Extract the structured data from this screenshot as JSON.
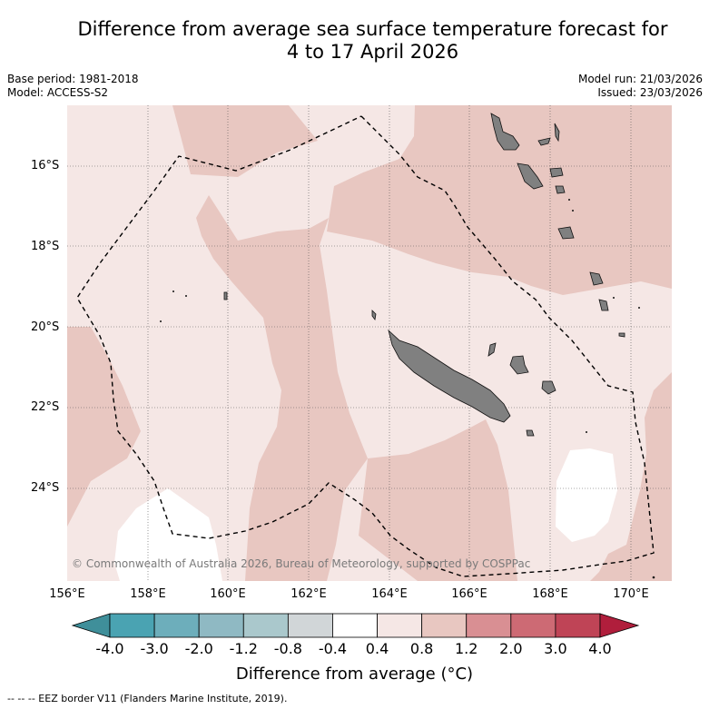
{
  "title": {
    "line1": "Difference from average sea surface temperature forecast for",
    "line2": "4 to 17 April 2026"
  },
  "meta": {
    "base_period": "Base period: 1981-2018",
    "model": "Model: ACCESS-S2",
    "model_run": "Model run: 21/03/2026",
    "issued": "Issued: 23/03/2026"
  },
  "map": {
    "lat_labels": [
      "16°S",
      "18°S",
      "20°S",
      "22°S",
      "24°S"
    ],
    "lon_labels": [
      "156°E",
      "158°E",
      "160°E",
      "162°E",
      "164°E",
      "166°E",
      "168°E",
      "170°E"
    ],
    "copyright": "© Commonwealth of Australia 2026, Bureau of Meteorology, supported by COSPPac"
  },
  "colorbar": {
    "labels": [
      "-4.0",
      "-3.0",
      "-2.0",
      "-1.2",
      "-0.8",
      "-0.4",
      "0.4",
      "0.8",
      "1.2",
      "2.0",
      "3.0",
      "4.0"
    ],
    "colors": [
      "#3f8f9a",
      "#4aa3b2",
      "#6daebb",
      "#8fb9c3",
      "#aac8cc",
      "#d1d6d8",
      "#ffffff",
      "#f5e7e5",
      "#e8c7c1",
      "#d98f93",
      "#cd6a74",
      "#bf4456",
      "#b01e3c"
    ],
    "title": "Difference from average (°C)"
  },
  "legend": {
    "eez": "--  --  -- EEZ border V11 (Flanders Marine Institute, 2019)."
  }
}
